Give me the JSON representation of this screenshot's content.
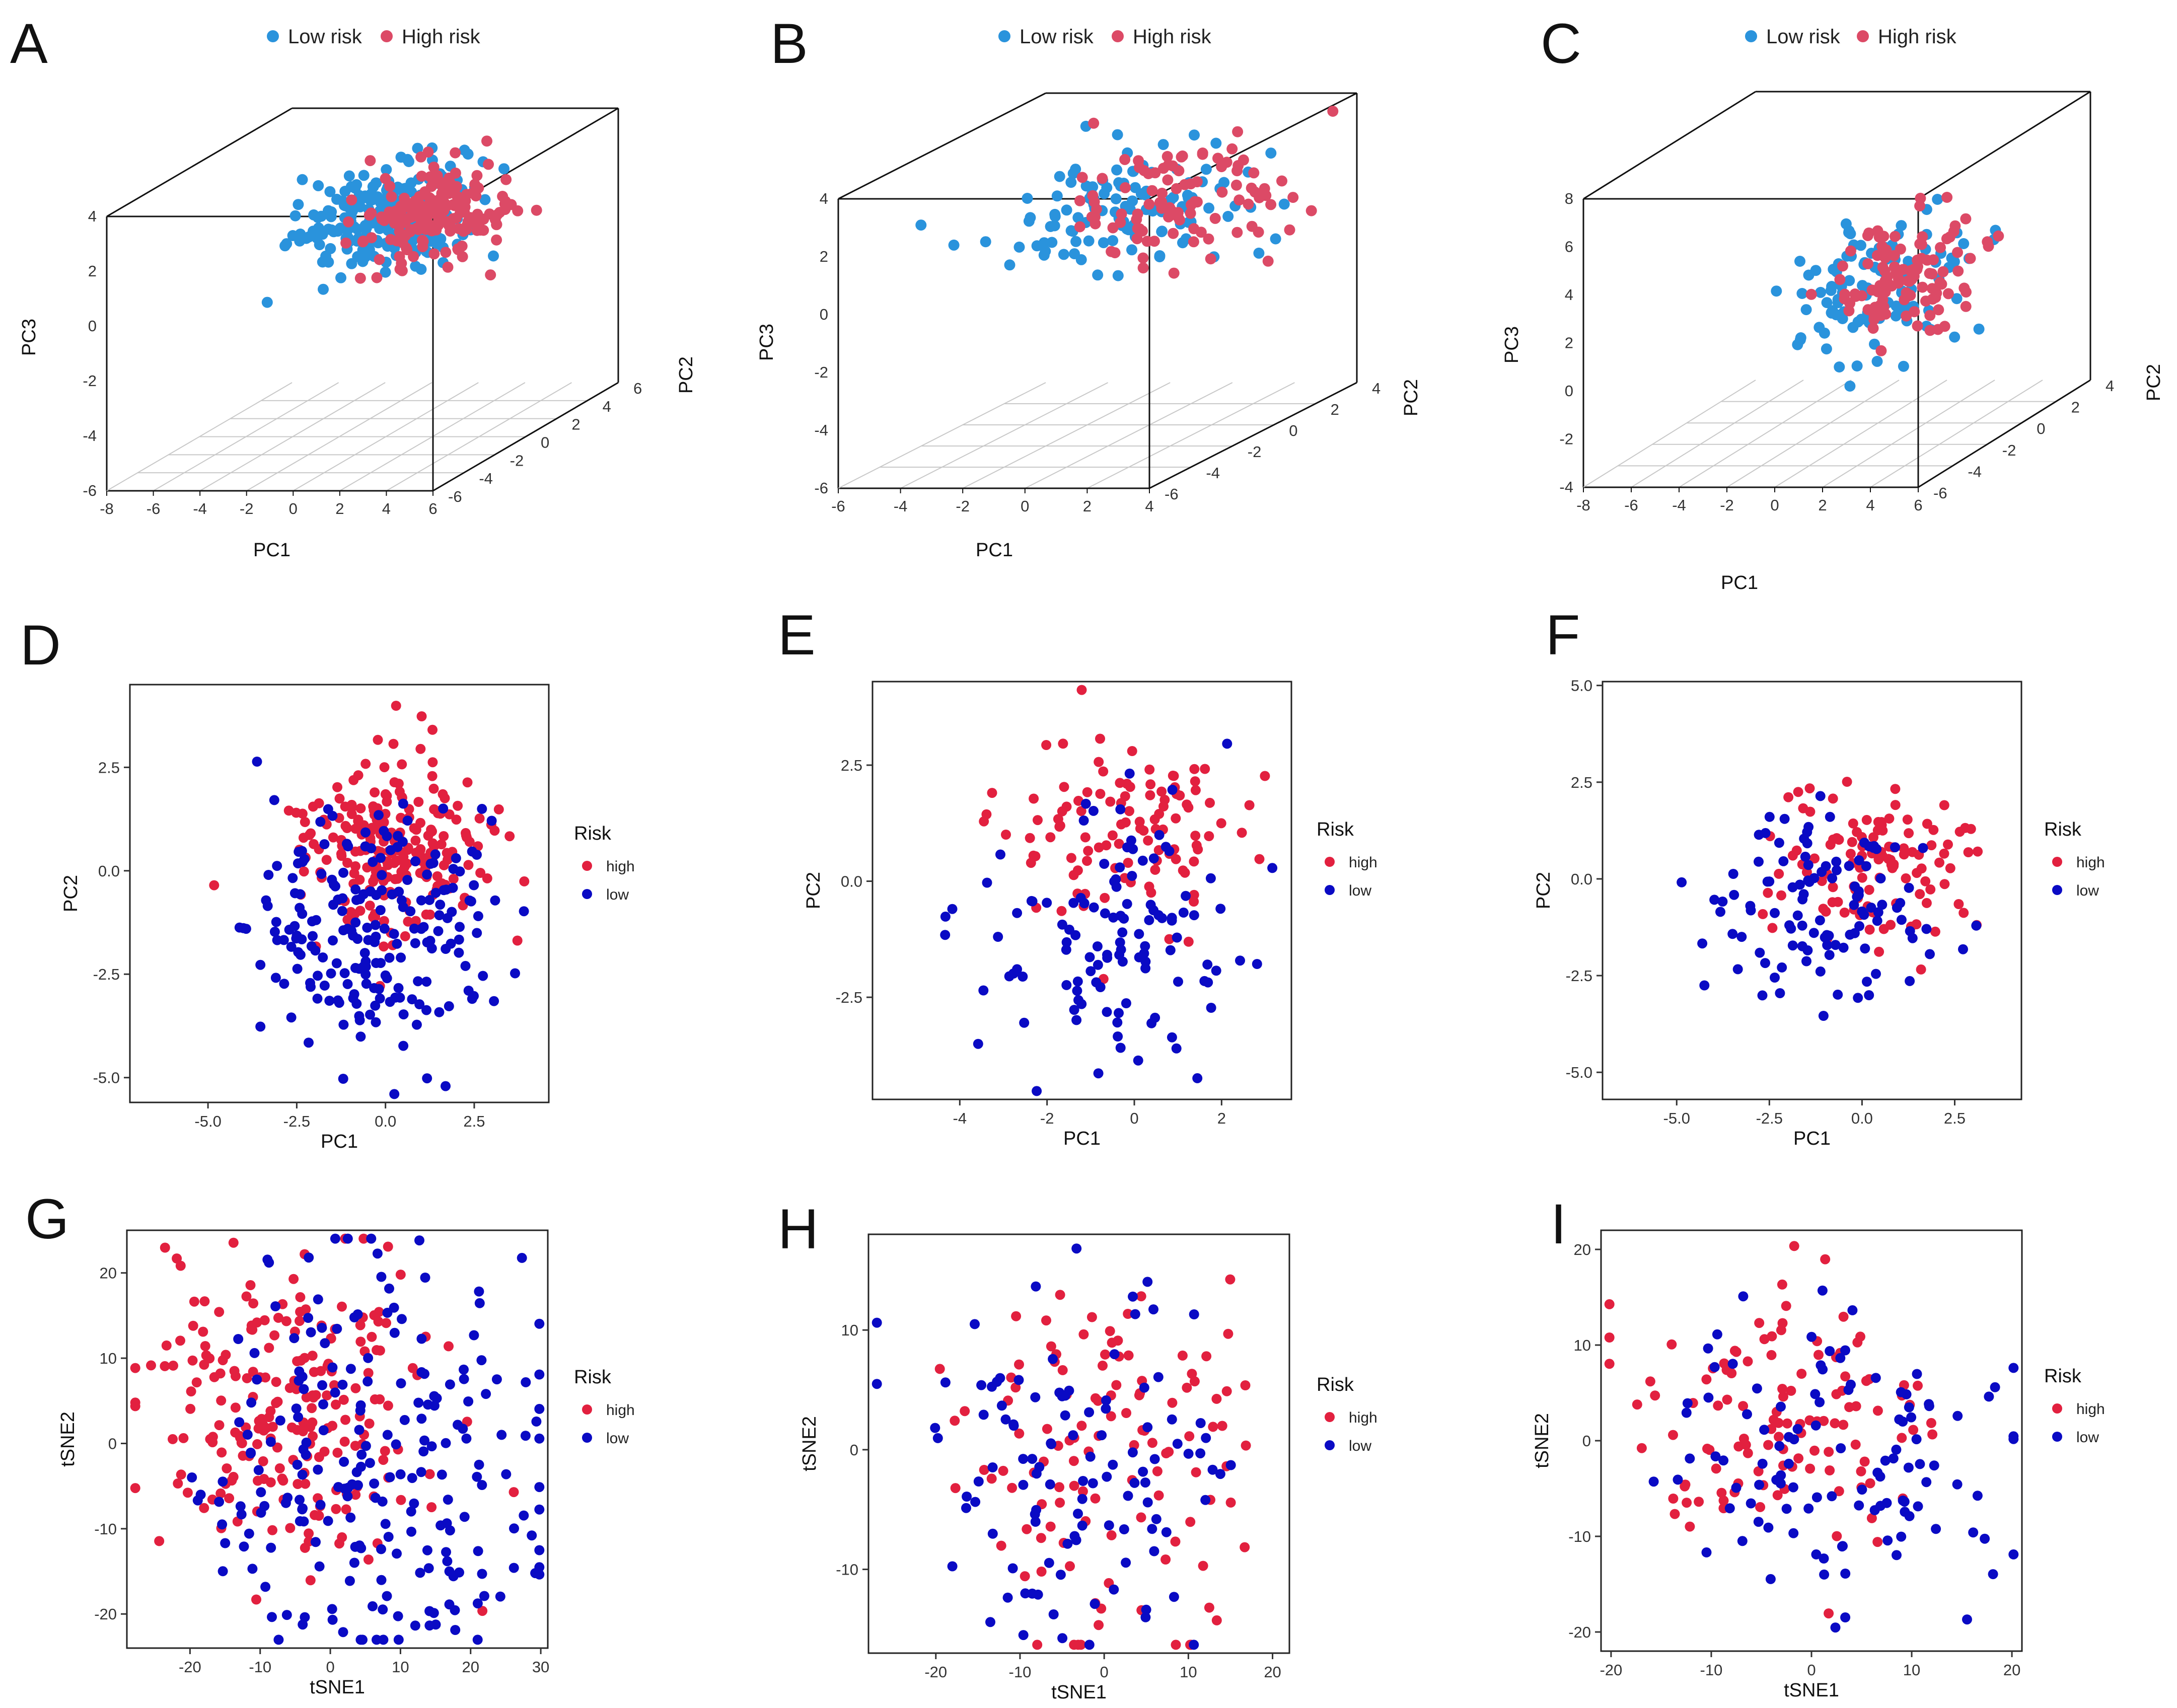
{
  "colors": {
    "low_risk_3d": "#2a93dc",
    "high_risk_3d": "#dc4a66",
    "high_2d": "#e2203f",
    "low_2d": "#0a0ac4",
    "frame": "#111111",
    "grid": "#c8c8c8"
  },
  "panels": [
    "A",
    "B",
    "C",
    "D",
    "E",
    "F",
    "G",
    "H",
    "I"
  ],
  "legend_3d": {
    "low": "Low risk",
    "high": "High risk"
  },
  "legend_2d": {
    "title": "Risk",
    "high": "high",
    "low": "low"
  },
  "chart_data": [
    {
      "panel": "A",
      "type": "scatter",
      "projection": "3d",
      "xlabel": "PC1",
      "ylabel": "PC2",
      "zlabel": "PC3",
      "x_ticks": [
        "-8",
        "-6",
        "-4",
        "-2",
        "0",
        "2",
        "4",
        "6"
      ],
      "y_ticks": [
        "-6",
        "-4",
        "-2",
        "0",
        "2",
        "4",
        "6"
      ],
      "z_ticks": [
        "-6",
        "-4",
        "-2",
        "0",
        "2",
        "4"
      ],
      "xlim": [
        -8,
        6
      ],
      "ylim": [
        -6,
        6
      ],
      "zlim": [
        -6,
        4
      ],
      "series": [
        {
          "name": "Low risk",
          "n": 240,
          "center": [
            0.5,
            -0.8,
            2.3
          ],
          "spread": [
            1.6,
            1.4,
            0.9
          ]
        },
        {
          "name": "High risk",
          "n": 180,
          "center": [
            1.6,
            0.6,
            1.9
          ],
          "spread": [
            1.4,
            1.2,
            0.9
          ]
        }
      ]
    },
    {
      "panel": "B",
      "type": "scatter",
      "projection": "3d",
      "xlabel": "PC1",
      "ylabel": "PC2",
      "zlabel": "PC3",
      "x_ticks": [
        "-6",
        "-4",
        "-2",
        "0",
        "2",
        "4"
      ],
      "y_ticks": [
        "-6",
        "-4",
        "-2",
        "0",
        "2",
        "4"
      ],
      "z_ticks": [
        "-6",
        "-4",
        "-2",
        "0",
        "2",
        "4"
      ],
      "xlim": [
        -6,
        4
      ],
      "ylim": [
        -6,
        4
      ],
      "zlim": [
        -6,
        4
      ],
      "series": [
        {
          "name": "Low risk",
          "n": 120,
          "center": [
            -0.4,
            -0.8,
            1.9
          ],
          "spread": [
            1.8,
            1.4,
            1.0
          ]
        },
        {
          "name": "High risk",
          "n": 100,
          "center": [
            0.8,
            0.6,
            1.6
          ],
          "spread": [
            1.5,
            1.3,
            1.1
          ]
        }
      ]
    },
    {
      "panel": "C",
      "type": "scatter",
      "projection": "3d",
      "xlabel": "PC1",
      "ylabel": "PC2",
      "zlabel": "PC3",
      "x_ticks": [
        "-8",
        "-6",
        "-4",
        "-2",
        "0",
        "2",
        "4",
        "6"
      ],
      "y_ticks": [
        "-6",
        "-4",
        "-2",
        "0",
        "2",
        "4"
      ],
      "z_ticks": [
        "-4",
        "-2",
        "0",
        "2",
        "4",
        "6",
        "8"
      ],
      "xlim": [
        -8,
        6
      ],
      "ylim": [
        -6,
        4
      ],
      "zlim": [
        -4,
        8
      ],
      "series": [
        {
          "name": "Low risk",
          "n": 110,
          "center": [
            0.2,
            -0.5,
            2.0
          ],
          "spread": [
            1.6,
            1.4,
            1.2
          ]
        },
        {
          "name": "High risk",
          "n": 110,
          "center": [
            1.0,
            0.4,
            1.8
          ],
          "spread": [
            1.4,
            1.2,
            1.2
          ]
        }
      ]
    },
    {
      "panel": "D",
      "type": "scatter",
      "xlabel": "PC1",
      "ylabel": "PC2",
      "xlim": [
        -7.2,
        4.6
      ],
      "ylim": [
        -5.6,
        4.5
      ],
      "x_ticks": [
        -5.0,
        -2.5,
        0.0,
        2.5
      ],
      "x_tick_labels": [
        "-5.0",
        "-2.5",
        "0.0",
        "2.5"
      ],
      "y_ticks": [
        -5.0,
        -2.5,
        0.0,
        2.5
      ],
      "y_tick_labels": [
        "-5.0",
        "-2.5",
        "0.0",
        "2.5"
      ],
      "series": [
        {
          "name": "high",
          "n": 230,
          "center": [
            0.3,
            0.6
          ],
          "spread": [
            1.4,
            1.1
          ]
        },
        {
          "name": "low",
          "n": 210,
          "center": [
            -0.4,
            -1.3
          ],
          "spread": [
            1.6,
            1.4
          ]
        }
      ]
    },
    {
      "panel": "E",
      "type": "scatter",
      "xlabel": "PC1",
      "ylabel": "PC2",
      "xlim": [
        -6.0,
        3.6
      ],
      "ylim": [
        -4.7,
        4.3
      ],
      "x_ticks": [
        -4,
        -2,
        0,
        2
      ],
      "x_tick_labels": [
        "-4",
        "-2",
        "0",
        "2"
      ],
      "y_ticks": [
        -2.5,
        0.0,
        2.5
      ],
      "y_tick_labels": [
        "-2.5",
        "0.0",
        "2.5"
      ],
      "series": [
        {
          "name": "high",
          "n": 110,
          "center": [
            0.1,
            1.1
          ],
          "spread": [
            1.4,
            1.0
          ]
        },
        {
          "name": "low",
          "n": 115,
          "center": [
            -0.4,
            -1.2
          ],
          "spread": [
            1.5,
            1.3
          ]
        }
      ]
    },
    {
      "panel": "F",
      "type": "scatter",
      "xlabel": "PC1",
      "ylabel": "PC2",
      "xlim": [
        -7.0,
        4.3
      ],
      "ylim": [
        -5.7,
        5.1
      ],
      "x_ticks": [
        -5.0,
        -2.5,
        0.0,
        2.5
      ],
      "x_tick_labels": [
        "-5.0",
        "-2.5",
        "0.0",
        "2.5"
      ],
      "y_ticks": [
        -5.0,
        -2.5,
        0.0,
        2.5,
        5.0
      ],
      "y_tick_labels": [
        "-5.0",
        "-2.5",
        "0.0",
        "2.5",
        "5.0"
      ],
      "series": [
        {
          "name": "high",
          "n": 115,
          "center": [
            0.4,
            0.5
          ],
          "spread": [
            1.4,
            1.1
          ]
        },
        {
          "name": "low",
          "n": 110,
          "center": [
            -0.6,
            -0.8
          ],
          "spread": [
            1.6,
            1.3
          ]
        }
      ]
    },
    {
      "panel": "G",
      "type": "scatter",
      "xlabel": "tSNE1",
      "ylabel": "tSNE2",
      "xlim": [
        -29,
        31
      ],
      "ylim": [
        -24,
        25
      ],
      "x_ticks": [
        -20,
        -10,
        0,
        10,
        20,
        30
      ],
      "x_tick_labels": [
        "-20",
        "-10",
        "0",
        "10",
        "20",
        "30"
      ],
      "y_ticks": [
        -20,
        -10,
        0,
        10,
        20
      ],
      "y_tick_labels": [
        "-20",
        "-10",
        "0",
        "10",
        "20"
      ],
      "series": [
        {
          "name": "high",
          "n": 220,
          "center": [
            -5,
            4
          ],
          "spread": [
            10,
            9
          ]
        },
        {
          "name": "low",
          "n": 220,
          "center": [
            7,
            -4
          ],
          "spread": [
            12,
            11
          ]
        }
      ]
    },
    {
      "panel": "H",
      "type": "scatter",
      "xlabel": "tSNE1",
      "ylabel": "tSNE2",
      "xlim": [
        -28,
        22
      ],
      "ylim": [
        -17,
        18
      ],
      "x_ticks": [
        -20,
        -10,
        0,
        10,
        20
      ],
      "x_tick_labels": [
        "-20",
        "-10",
        "0",
        "10",
        "20"
      ],
      "y_ticks": [
        -10,
        0,
        10
      ],
      "y_tick_labels": [
        "-10",
        "0",
        "10"
      ],
      "series": [
        {
          "name": "high",
          "n": 115,
          "center": [
            0,
            0
          ],
          "spread": [
            9,
            8
          ]
        },
        {
          "name": "low",
          "n": 110,
          "center": [
            -4,
            -1
          ],
          "spread": [
            10,
            7
          ]
        }
      ]
    },
    {
      "panel": "I",
      "type": "scatter",
      "xlabel": "tSNE1",
      "ylabel": "tSNE2",
      "xlim": [
        -21,
        21
      ],
      "ylim": [
        -22,
        22
      ],
      "x_ticks": [
        -20,
        -10,
        0,
        10,
        20
      ],
      "x_tick_labels": [
        "-20",
        "-10",
        "0",
        "10",
        "20"
      ],
      "y_ticks": [
        -20,
        -10,
        0,
        10,
        20
      ],
      "y_tick_labels": [
        "-20",
        "-10",
        "0",
        "10",
        "20"
      ],
      "series": [
        {
          "name": "high",
          "n": 115,
          "center": [
            -4,
            1
          ],
          "spread": [
            8,
            7
          ]
        },
        {
          "name": "low",
          "n": 110,
          "center": [
            3,
            -2
          ],
          "spread": [
            8,
            8
          ]
        }
      ]
    }
  ]
}
